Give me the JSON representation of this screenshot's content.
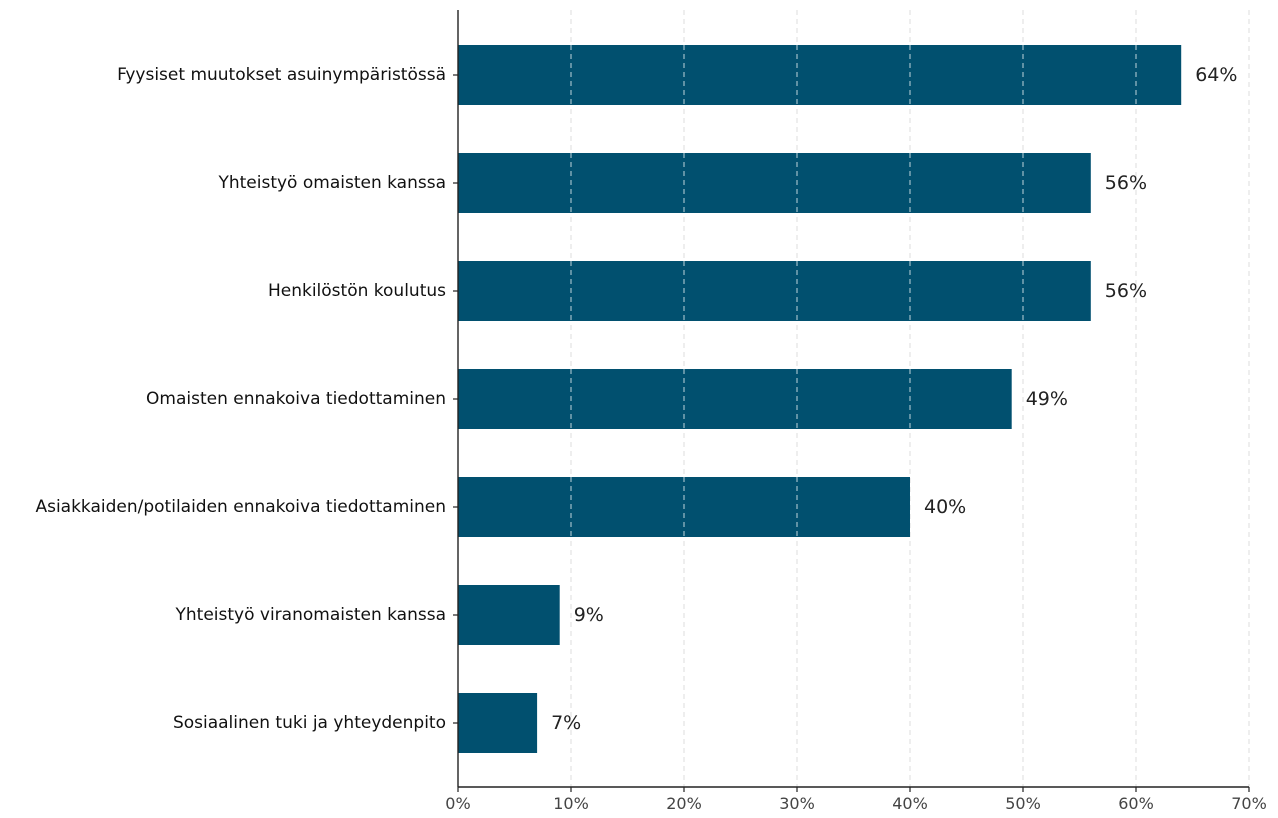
{
  "chart_data": {
    "type": "bar",
    "orientation": "horizontal",
    "categories": [
      "Fyysiset muutokset asuinympäristössä",
      "Yhteistyö omaisten kanssa",
      "Henkilöstön koulutus",
      "Omaisten ennakoiva tiedottaminen",
      "Asiakkaiden/potilaiden ennakoiva tiedottaminen",
      "Yhteistyö viranomaisten kanssa",
      "Sosiaalinen tuki ja yhteydenpito"
    ],
    "values": [
      64,
      56,
      56,
      49,
      40,
      9,
      7
    ],
    "value_labels": [
      "64%",
      "56%",
      "56%",
      "49%",
      "40%",
      "9%",
      "7%"
    ],
    "xlim": [
      0,
      70
    ],
    "x_ticks": [
      0,
      10,
      20,
      30,
      40,
      50,
      60,
      70
    ],
    "x_tick_labels": [
      "0%",
      "10%",
      "20%",
      "30%",
      "40%",
      "50%",
      "60%",
      "70%"
    ],
    "title": "",
    "xlabel": "",
    "ylabel": "",
    "grid": "vertical dashed",
    "bar_color": "#01506f",
    "grid_color": "#dddddd"
  }
}
